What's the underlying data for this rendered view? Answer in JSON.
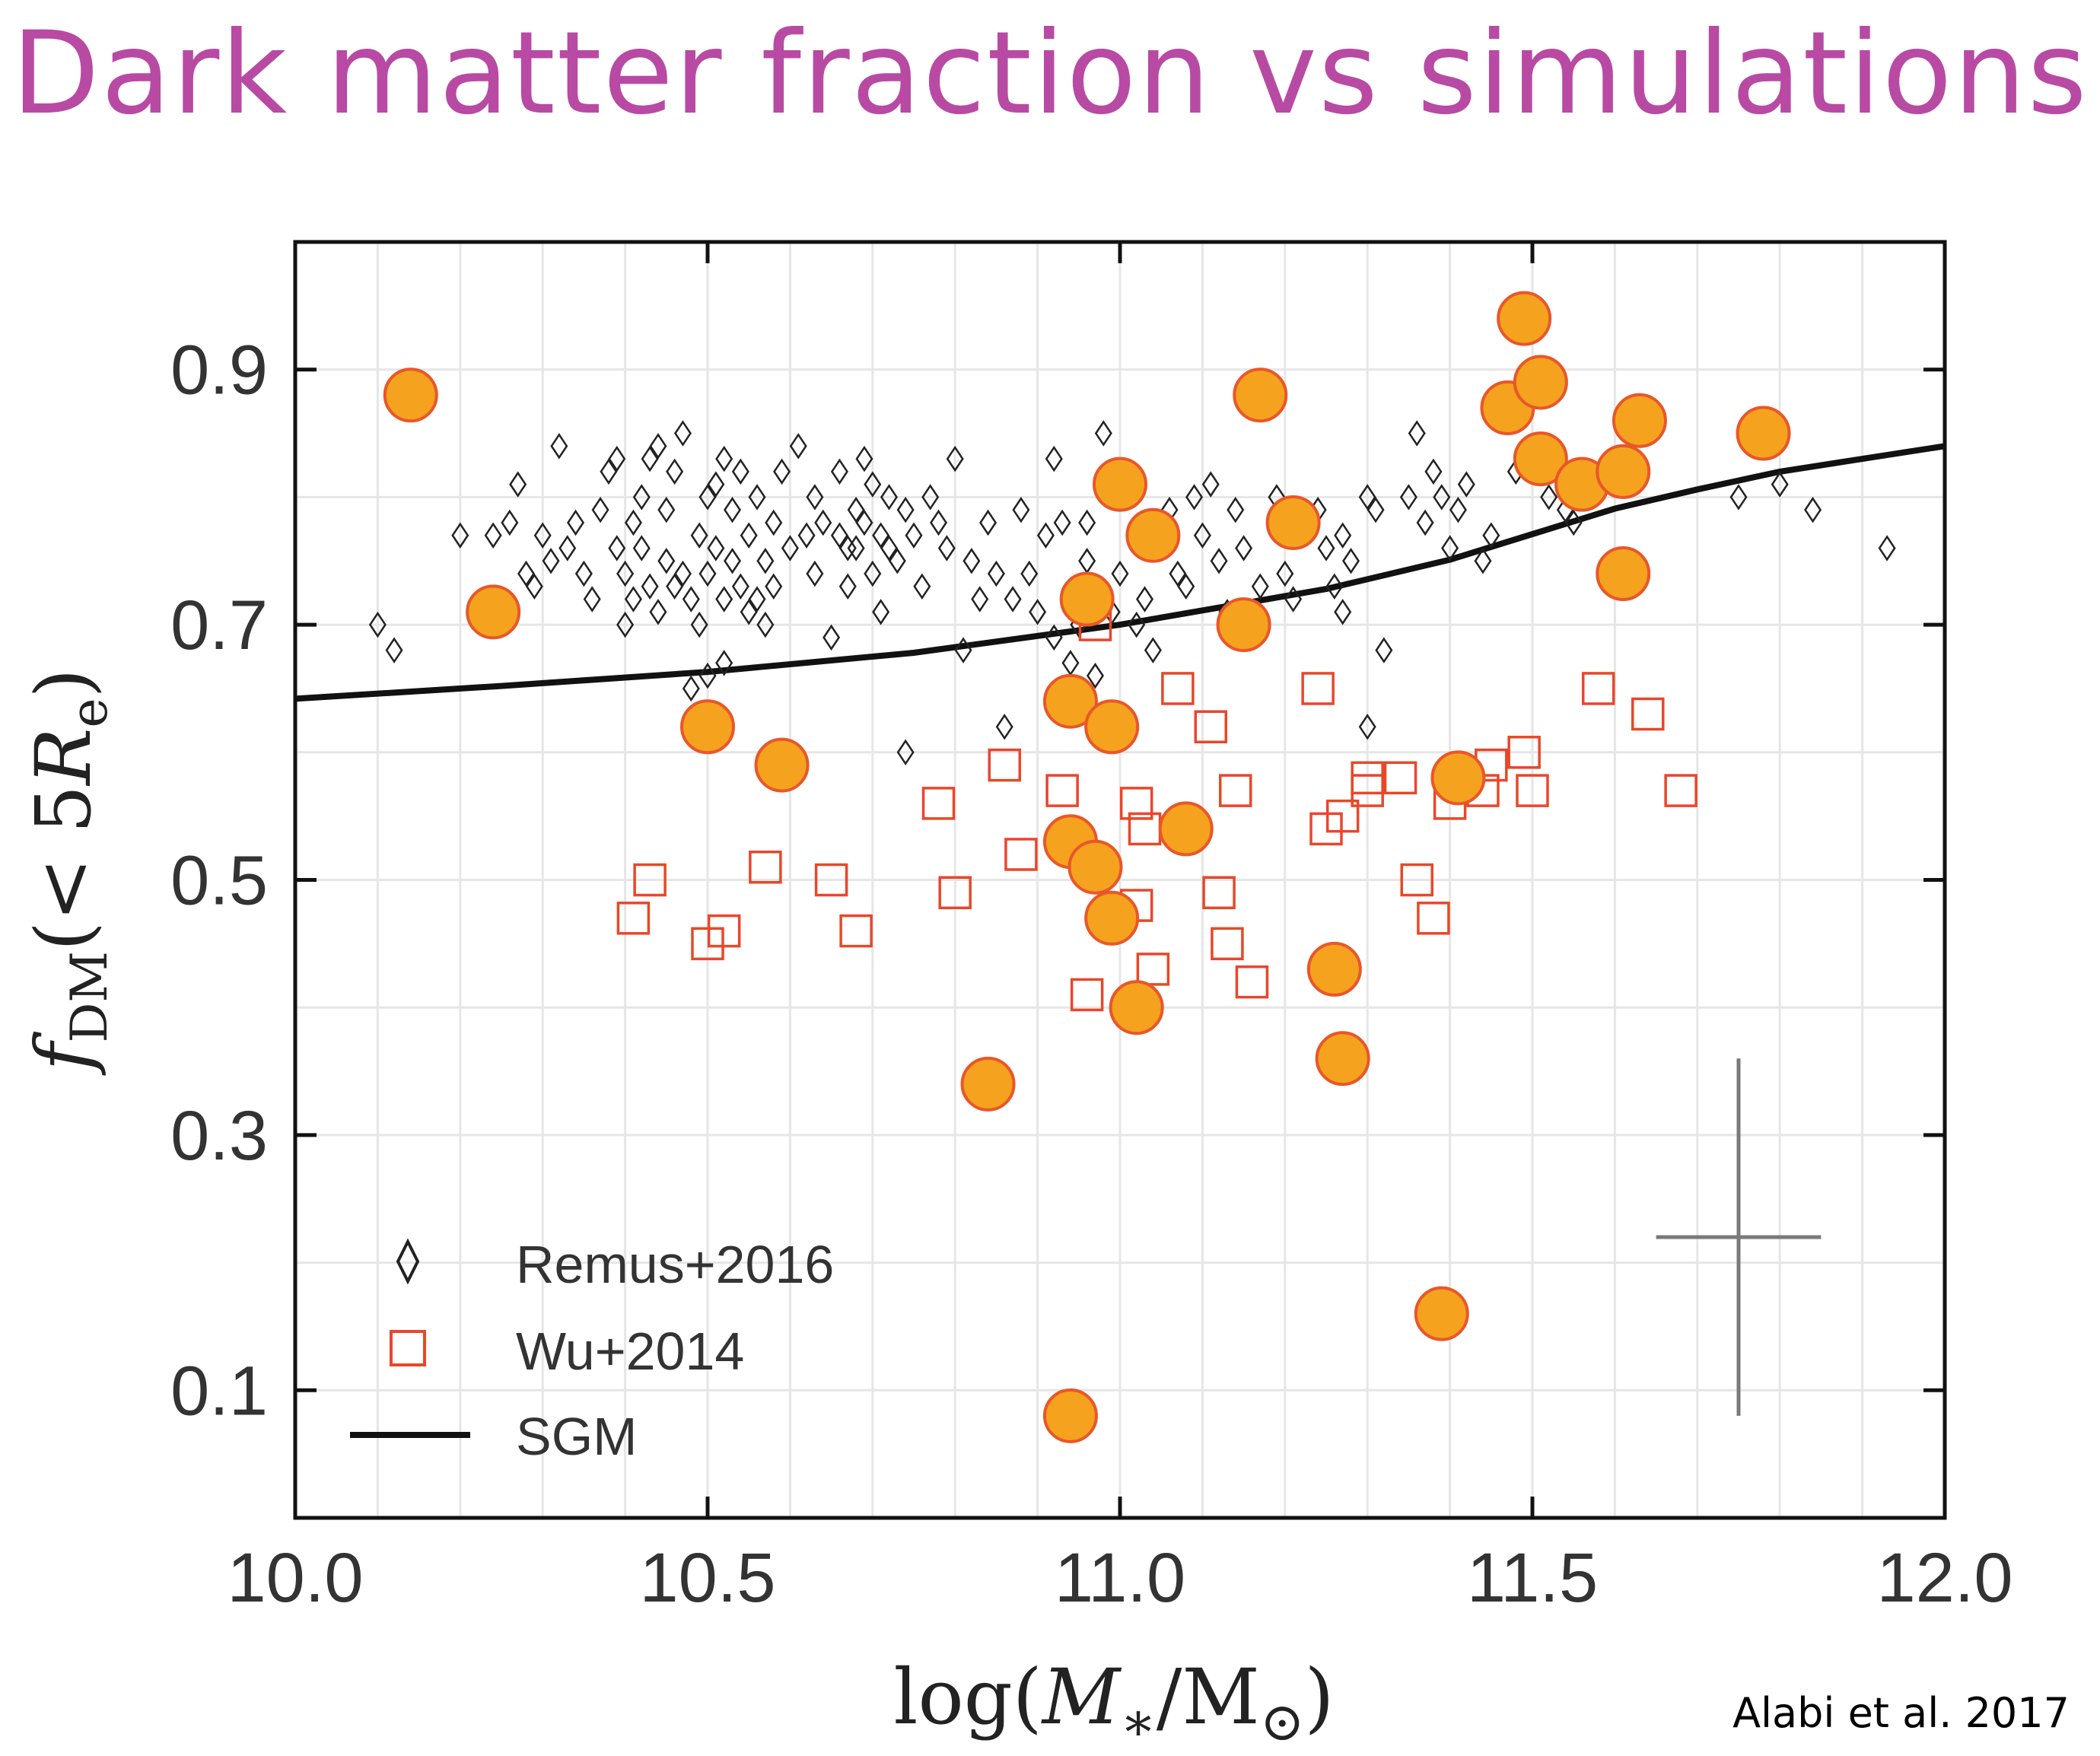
{
  "title": "Dark matter fraction vs simulations",
  "credit": "Alabi et al. 2017",
  "chart_data": {
    "type": "scatter",
    "title": "Dark matter fraction vs simulations",
    "xlabel_text": "log(M∗/M⊙)",
    "ylabel_text": "f_DM(< 5R_e)",
    "xlim": [
      10.0,
      12.0
    ],
    "ylim": [
      0.0,
      1.0
    ],
    "xticks": [
      10.0,
      10.5,
      11.0,
      11.5,
      12.0
    ],
    "xtick_labels": [
      "10.0",
      "10.5",
      "11.0",
      "11.5",
      "12.0"
    ],
    "yticks": [
      0.1,
      0.3,
      0.5,
      0.7,
      0.9
    ],
    "ytick_labels": [
      "0.1",
      "0.3",
      "0.5",
      "0.7",
      "0.9"
    ],
    "legend": {
      "location": "lower-left",
      "entries": [
        "Remus+2016",
        "Wu+2014",
        "SGM"
      ]
    },
    "colors": {
      "observed_fill": "#f5a21e",
      "observed_edge": "#e8572a",
      "wu_edge": "#e8472a",
      "remus_edge": "#222222",
      "sgm_line": "#111111",
      "errorbar": "#7a7a7a",
      "grid": "#e6e6e6"
    },
    "series": [
      {
        "name": "Alabi et al. 2017 (observed)",
        "marker": "circle",
        "points": [
          [
            10.14,
            0.88
          ],
          [
            10.24,
            0.71
          ],
          [
            10.5,
            0.62
          ],
          [
            10.59,
            0.59
          ],
          [
            10.84,
            0.34
          ],
          [
            10.94,
            0.64
          ],
          [
            10.94,
            0.53
          ],
          [
            10.94,
            0.08
          ],
          [
            10.96,
            0.72
          ],
          [
            10.97,
            0.51
          ],
          [
            10.99,
            0.62
          ],
          [
            10.99,
            0.47
          ],
          [
            11.0,
            0.81
          ],
          [
            11.02,
            0.4
          ],
          [
            11.04,
            0.77
          ],
          [
            11.08,
            0.54
          ],
          [
            11.15,
            0.7
          ],
          [
            11.17,
            0.88
          ],
          [
            11.21,
            0.78
          ],
          [
            11.26,
            0.43
          ],
          [
            11.27,
            0.36
          ],
          [
            11.39,
            0.16
          ],
          [
            11.41,
            0.58
          ],
          [
            11.47,
            0.87
          ],
          [
            11.49,
            0.94
          ],
          [
            11.51,
            0.89
          ],
          [
            11.51,
            0.83
          ],
          [
            11.56,
            0.81
          ],
          [
            11.61,
            0.82
          ],
          [
            11.61,
            0.74
          ],
          [
            11.63,
            0.86
          ],
          [
            11.78,
            0.85
          ]
        ]
      },
      {
        "name": "Wu+2014",
        "marker": "square",
        "points": [
          [
            10.41,
            0.47
          ],
          [
            10.43,
            0.5
          ],
          [
            10.5,
            0.45
          ],
          [
            10.52,
            0.46
          ],
          [
            10.57,
            0.51
          ],
          [
            10.65,
            0.5
          ],
          [
            10.68,
            0.46
          ],
          [
            10.78,
            0.56
          ],
          [
            10.8,
            0.49
          ],
          [
            10.86,
            0.59
          ],
          [
            10.88,
            0.52
          ],
          [
            10.93,
            0.57
          ],
          [
            10.96,
            0.41
          ],
          [
            10.97,
            0.7
          ],
          [
            11.02,
            0.56
          ],
          [
            11.02,
            0.48
          ],
          [
            11.03,
            0.54
          ],
          [
            11.04,
            0.43
          ],
          [
            11.07,
            0.65
          ],
          [
            11.11,
            0.62
          ],
          [
            11.12,
            0.49
          ],
          [
            11.13,
            0.45
          ],
          [
            11.14,
            0.57
          ],
          [
            11.16,
            0.42
          ],
          [
            11.24,
            0.65
          ],
          [
            11.25,
            0.54
          ],
          [
            11.27,
            0.55
          ],
          [
            11.3,
            0.58
          ],
          [
            11.3,
            0.57
          ],
          [
            11.34,
            0.58
          ],
          [
            11.36,
            0.5
          ],
          [
            11.38,
            0.47
          ],
          [
            11.4,
            0.56
          ],
          [
            11.44,
            0.57
          ],
          [
            11.45,
            0.59
          ],
          [
            11.49,
            0.6
          ],
          [
            11.5,
            0.57
          ],
          [
            11.58,
            0.65
          ],
          [
            11.64,
            0.63
          ],
          [
            11.68,
            0.57
          ]
        ]
      },
      {
        "name": "Remus+2016",
        "marker": "diamond",
        "points": [
          [
            10.1,
            0.7
          ],
          [
            10.12,
            0.68
          ],
          [
            10.2,
            0.77
          ],
          [
            10.24,
            0.77
          ],
          [
            10.26,
            0.78
          ],
          [
            10.27,
            0.81
          ],
          [
            10.28,
            0.74
          ],
          [
            10.29,
            0.73
          ],
          [
            10.3,
            0.77
          ],
          [
            10.31,
            0.75
          ],
          [
            10.32,
            0.84
          ],
          [
            10.33,
            0.76
          ],
          [
            10.34,
            0.78
          ],
          [
            10.35,
            0.74
          ],
          [
            10.36,
            0.72
          ],
          [
            10.37,
            0.79
          ],
          [
            10.38,
            0.82
          ],
          [
            10.39,
            0.83
          ],
          [
            10.39,
            0.76
          ],
          [
            10.4,
            0.7
          ],
          [
            10.4,
            0.74
          ],
          [
            10.41,
            0.78
          ],
          [
            10.41,
            0.72
          ],
          [
            10.42,
            0.8
          ],
          [
            10.42,
            0.76
          ],
          [
            10.43,
            0.83
          ],
          [
            10.43,
            0.73
          ],
          [
            10.44,
            0.84
          ],
          [
            10.44,
            0.71
          ],
          [
            10.45,
            0.79
          ],
          [
            10.45,
            0.75
          ],
          [
            10.46,
            0.82
          ],
          [
            10.46,
            0.73
          ],
          [
            10.47,
            0.85
          ],
          [
            10.47,
            0.74
          ],
          [
            10.48,
            0.72
          ],
          [
            10.48,
            0.65
          ],
          [
            10.49,
            0.77
          ],
          [
            10.49,
            0.7
          ],
          [
            10.5,
            0.8
          ],
          [
            10.5,
            0.74
          ],
          [
            10.5,
            0.66
          ],
          [
            10.51,
            0.81
          ],
          [
            10.51,
            0.76
          ],
          [
            10.52,
            0.83
          ],
          [
            10.52,
            0.72
          ],
          [
            10.52,
            0.67
          ],
          [
            10.53,
            0.79
          ],
          [
            10.53,
            0.75
          ],
          [
            10.54,
            0.82
          ],
          [
            10.54,
            0.73
          ],
          [
            10.55,
            0.77
          ],
          [
            10.55,
            0.71
          ],
          [
            10.56,
            0.8
          ],
          [
            10.56,
            0.72
          ],
          [
            10.57,
            0.75
          ],
          [
            10.57,
            0.7
          ],
          [
            10.58,
            0.78
          ],
          [
            10.58,
            0.73
          ],
          [
            10.59,
            0.82
          ],
          [
            10.6,
            0.76
          ],
          [
            10.61,
            0.84
          ],
          [
            10.62,
            0.77
          ],
          [
            10.63,
            0.8
          ],
          [
            10.63,
            0.74
          ],
          [
            10.64,
            0.78
          ],
          [
            10.65,
            0.69
          ],
          [
            10.66,
            0.77
          ],
          [
            10.66,
            0.82
          ],
          [
            10.67,
            0.76
          ],
          [
            10.67,
            0.73
          ],
          [
            10.68,
            0.79
          ],
          [
            10.68,
            0.76
          ],
          [
            10.69,
            0.83
          ],
          [
            10.69,
            0.78
          ],
          [
            10.7,
            0.81
          ],
          [
            10.7,
            0.74
          ],
          [
            10.71,
            0.77
          ],
          [
            10.71,
            0.71
          ],
          [
            10.72,
            0.8
          ],
          [
            10.72,
            0.76
          ],
          [
            10.73,
            0.75
          ],
          [
            10.74,
            0.79
          ],
          [
            10.75,
            0.77
          ],
          [
            10.76,
            0.73
          ],
          [
            10.77,
            0.8
          ],
          [
            10.78,
            0.78
          ],
          [
            10.79,
            0.76
          ],
          [
            10.8,
            0.83
          ],
          [
            10.81,
            0.68
          ],
          [
            10.82,
            0.75
          ],
          [
            10.83,
            0.72
          ],
          [
            10.84,
            0.78
          ],
          [
            10.85,
            0.74
          ],
          [
            10.86,
            0.62
          ],
          [
            10.87,
            0.72
          ],
          [
            10.88,
            0.79
          ],
          [
            10.89,
            0.74
          ],
          [
            10.9,
            0.71
          ],
          [
            10.91,
            0.77
          ],
          [
            10.92,
            0.83
          ],
          [
            10.92,
            0.69
          ],
          [
            10.93,
            0.78
          ],
          [
            10.94,
            0.67
          ],
          [
            10.95,
            0.7
          ],
          [
            10.96,
            0.78
          ],
          [
            10.97,
            0.66
          ],
          [
            10.98,
            0.85
          ],
          [
            10.99,
            0.71
          ],
          [
            11.0,
            0.74
          ],
          [
            11.01,
            0.82
          ],
          [
            11.02,
            0.7
          ],
          [
            11.03,
            0.72
          ],
          [
            11.04,
            0.68
          ],
          [
            11.06,
            0.79
          ],
          [
            11.07,
            0.74
          ],
          [
            11.08,
            0.73
          ],
          [
            11.09,
            0.8
          ],
          [
            11.1,
            0.77
          ],
          [
            11.11,
            0.81
          ],
          [
            11.12,
            0.75
          ],
          [
            11.13,
            0.71
          ],
          [
            11.14,
            0.79
          ],
          [
            11.15,
            0.76
          ],
          [
            11.17,
            0.73
          ],
          [
            11.19,
            0.8
          ],
          [
            11.2,
            0.74
          ],
          [
            11.21,
            0.72
          ],
          [
            11.23,
            0.78
          ],
          [
            11.24,
            0.79
          ],
          [
            11.25,
            0.76
          ],
          [
            11.26,
            0.73
          ],
          [
            11.27,
            0.71
          ],
          [
            11.28,
            0.75
          ],
          [
            11.3,
            0.8
          ],
          [
            11.3,
            0.62
          ],
          [
            11.31,
            0.79
          ],
          [
            11.32,
            0.68
          ],
          [
            11.35,
            0.8
          ],
          [
            11.36,
            0.85
          ],
          [
            11.37,
            0.78
          ],
          [
            11.38,
            0.82
          ],
          [
            11.39,
            0.8
          ],
          [
            11.4,
            0.76
          ],
          [
            11.41,
            0.79
          ],
          [
            11.42,
            0.81
          ],
          [
            11.44,
            0.75
          ],
          [
            11.45,
            0.77
          ],
          [
            11.48,
            0.82
          ],
          [
            11.52,
            0.8
          ],
          [
            11.54,
            0.79
          ],
          [
            11.55,
            0.78
          ],
          [
            11.75,
            0.8
          ],
          [
            11.8,
            0.81
          ],
          [
            11.84,
            0.79
          ],
          [
            11.93,
            0.76
          ],
          [
            11.27,
            0.77
          ],
          [
            10.74,
            0.6
          ],
          [
            10.96,
            0.75
          ],
          [
            11.05,
            0.76
          ]
        ]
      },
      {
        "name": "SGM",
        "marker": "line",
        "points": [
          [
            10.0,
            0.642
          ],
          [
            10.25,
            0.652
          ],
          [
            10.5,
            0.663
          ],
          [
            10.75,
            0.678
          ],
          [
            11.0,
            0.7
          ],
          [
            11.25,
            0.728
          ],
          [
            11.4,
            0.751
          ],
          [
            11.5,
            0.771
          ],
          [
            11.6,
            0.791
          ],
          [
            11.7,
            0.806
          ],
          [
            11.8,
            0.82
          ],
          [
            11.9,
            0.83
          ],
          [
            12.0,
            0.84
          ]
        ]
      }
    ],
    "typical_error": {
      "x": 11.75,
      "y": 0.22,
      "dx": 0.1,
      "dy": 0.14
    }
  }
}
